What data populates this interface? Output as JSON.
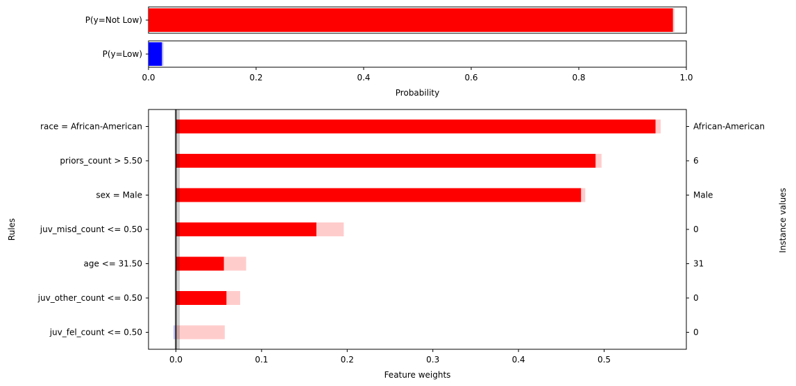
{
  "chart_data": [
    {
      "type": "bar",
      "orientation": "horizontal",
      "categories": [
        "P(y=Not Low)",
        "P(y=Low)"
      ],
      "values": [
        0.975,
        0.025
      ],
      "uncertainty_low": [
        0.972,
        0.022
      ],
      "uncertainty_high": [
        0.978,
        0.028
      ],
      "bar_colors": [
        "#ff0000",
        "#0000ff"
      ],
      "xlabel": "Probability",
      "xlim": [
        0.0,
        1.0
      ],
      "xticks": [
        0.0,
        0.2,
        0.4,
        0.6,
        0.8,
        1.0
      ],
      "xtick_labels": [
        "0.0",
        "0.2",
        "0.4",
        "0.6",
        "0.8",
        "1.0"
      ]
    },
    {
      "type": "bar",
      "orientation": "horizontal",
      "categories": [
        "race = African-American",
        "priors_count > 5.50",
        "sex = Male",
        "juv_misd_count <= 0.50",
        "age <= 31.50",
        "juv_other_count <= 0.50",
        "juv_fel_count <= 0.50"
      ],
      "instance_values": [
        "African-American",
        "6",
        "Male",
        "0",
        "31",
        "0",
        "0"
      ],
      "values": [
        0.56,
        0.49,
        0.473,
        0.164,
        0.056,
        0.059,
        0.0
      ],
      "interval_low": [
        0.0,
        0.0,
        0.0,
        0.0,
        0.0,
        0.0,
        -0.003
      ],
      "interval_high": [
        0.566,
        0.497,
        0.478,
        0.196,
        0.082,
        0.075,
        0.057
      ],
      "positive_color": "#ff0000",
      "negative_color": "#0000ff",
      "xlabel": "Feature weights",
      "ylabel": "Rules",
      "y2label": "Instance values",
      "xlim": [
        -0.032,
        0.596
      ],
      "xticks": [
        0.0,
        0.1,
        0.2,
        0.3,
        0.4,
        0.5
      ],
      "xtick_labels": [
        "0.0",
        "0.1",
        "0.2",
        "0.3",
        "0.4",
        "0.5"
      ],
      "zero_band": [
        -0.0015,
        0.0045
      ]
    }
  ]
}
